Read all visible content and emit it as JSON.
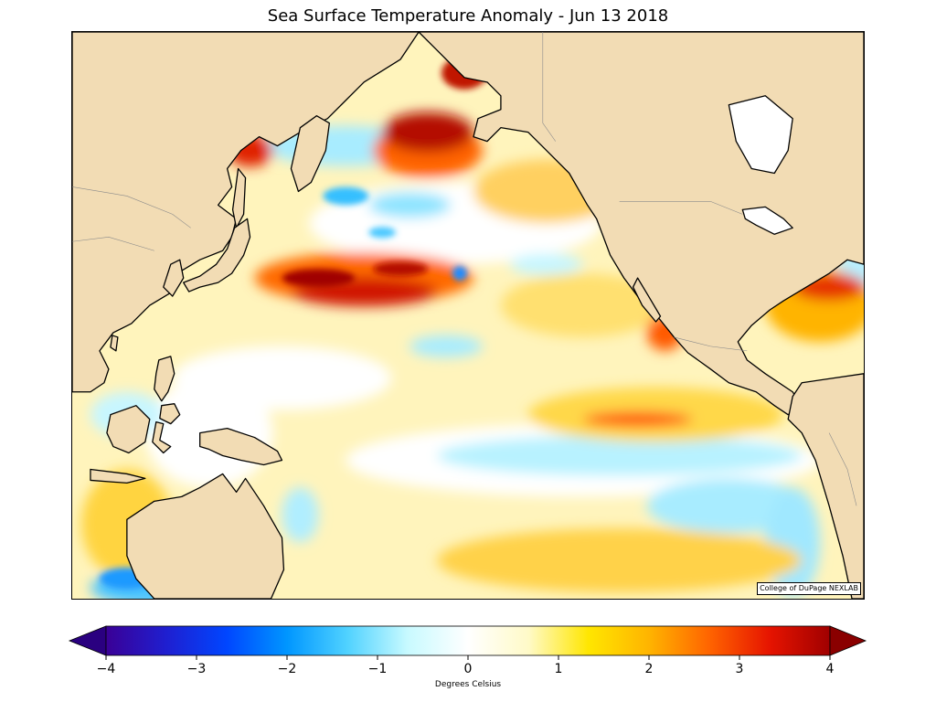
{
  "title": "Sea Surface Temperature Anomaly - Jun 13 2018",
  "credit": "College of DuPage NEXLAB",
  "colorbar": {
    "units_label": "Degrees Celsius",
    "min": -4,
    "max": 4,
    "extend": "both",
    "ticks": [
      {
        "value": -4,
        "label": "−4"
      },
      {
        "value": -3,
        "label": "−3"
      },
      {
        "value": -2,
        "label": "−2"
      },
      {
        "value": -1,
        "label": "−1"
      },
      {
        "value": 0,
        "label": "0"
      },
      {
        "value": 1,
        "label": "1"
      },
      {
        "value": 2,
        "label": "2"
      },
      {
        "value": 3,
        "label": "3"
      },
      {
        "value": 4,
        "label": "4"
      }
    ],
    "colors": [
      "#3a0096",
      "#1f1fd0",
      "#0046ff",
      "#0096ff",
      "#50d2ff",
      "#c8faff",
      "#ffffff",
      "#fffac8",
      "#ffe600",
      "#ffb400",
      "#ff6400",
      "#e61400",
      "#a00000"
    ]
  },
  "map": {
    "region": "North Pacific Ocean",
    "land_color": "#f2dcb4",
    "ocean_base_color": "#fff6c8"
  }
}
